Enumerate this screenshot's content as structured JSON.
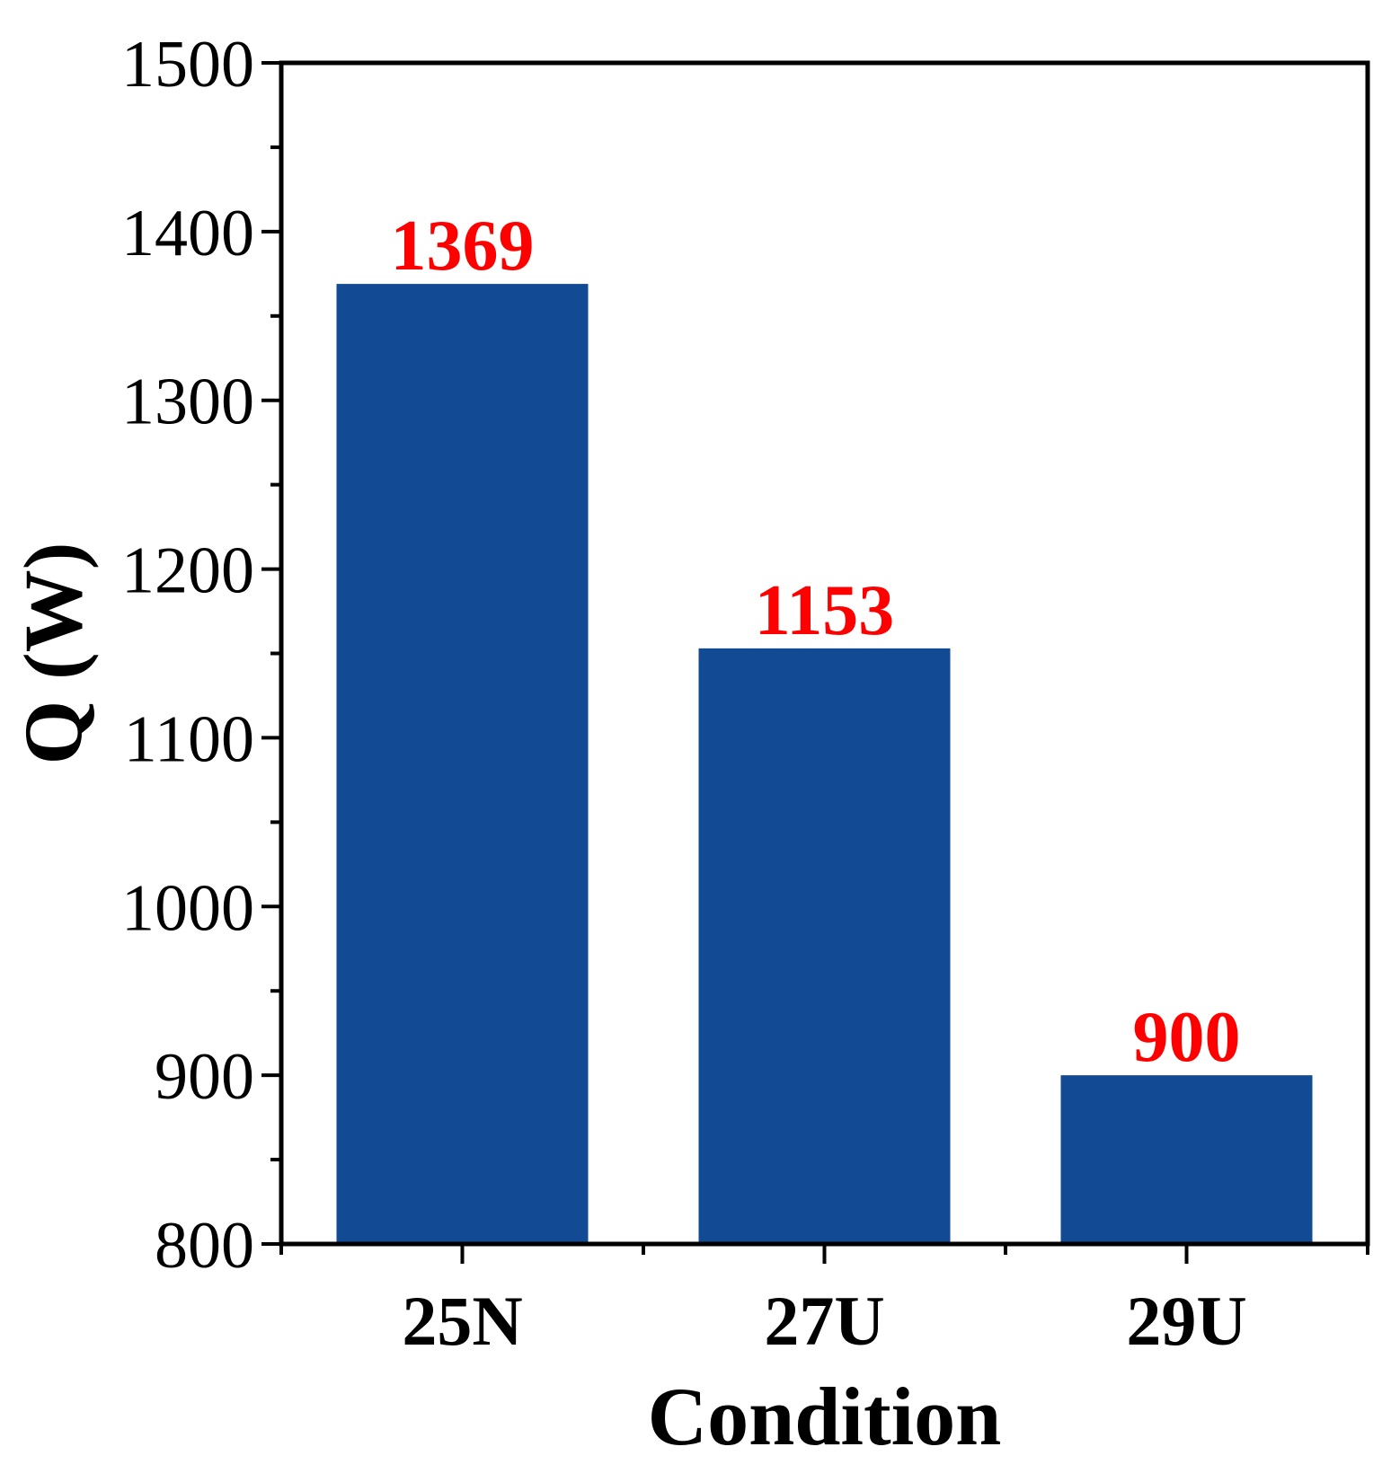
{
  "chart_data": {
    "type": "bar",
    "categories": [
      "25N",
      "27U",
      "29U"
    ],
    "values": [
      1369,
      1153,
      900
    ],
    "data_labels": [
      "1369",
      "1153",
      "900"
    ],
    "xlabel": "Condition",
    "ylabel": "Q (W)",
    "ylim": [
      800,
      1500
    ],
    "yticks": [
      800,
      900,
      1000,
      1100,
      1200,
      1300,
      1400,
      1500
    ],
    "ytick_labels": [
      "800",
      "900",
      "1000",
      "1100",
      "1200",
      "1300",
      "1400",
      "1500"
    ],
    "y_minor_step": 50,
    "grid": false,
    "legend": false,
    "bar_color": "#134a94",
    "data_label_color": "#ff0000",
    "axis_color": "#000000"
  }
}
